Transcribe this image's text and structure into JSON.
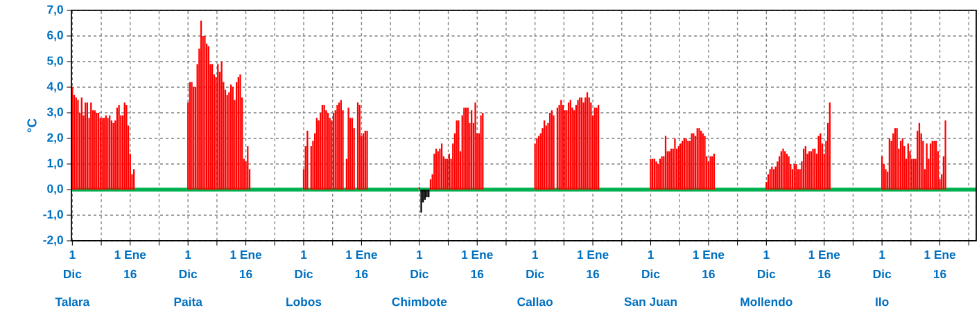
{
  "chart_data": [
    {
      "type": "bar",
      "xlabel": "Talara",
      "ylabel": "°C",
      "grid": true,
      "color": "#ff0000",
      "ylim": [
        -2,
        7
      ],
      "yticks": [
        {
          "value": -2,
          "label": "-2,0"
        },
        {
          "value": -1,
          "label": "-1,0"
        },
        {
          "value": 0,
          "label": "0,0"
        },
        {
          "value": 1,
          "label": "1,0"
        },
        {
          "value": 2,
          "label": "2,0"
        },
        {
          "value": 3,
          "label": "3,0"
        },
        {
          "value": 4,
          "label": "4,0"
        },
        {
          "value": 5,
          "label": "5,0"
        },
        {
          "value": 6,
          "label": "6,0"
        },
        {
          "value": 7,
          "label": "7,0"
        }
      ],
      "ref_lines": [
        {
          "axis": "y",
          "value": 0,
          "color": "#00b050"
        }
      ],
      "categories": [
        "1 Dic",
        null,
        null,
        null,
        null,
        null,
        null,
        null,
        null,
        null,
        null,
        null,
        null,
        null,
        null,
        null,
        null,
        null,
        null,
        null,
        null,
        null,
        null,
        null,
        null,
        null,
        null,
        null,
        null,
        null,
        null,
        "1 Ene 16",
        null,
        null,
        null,
        null,
        null,
        null,
        null,
        null,
        null,
        null,
        null,
        null,
        null,
        null,
        null,
        null,
        null,
        null,
        null,
        null,
        null,
        null,
        null,
        null,
        null,
        null,
        null,
        null,
        null,
        null
      ],
      "values": [
        4.0,
        3.7,
        3.6,
        3.5,
        3.0,
        3.6,
        2.9,
        3.4,
        3.4,
        2.8,
        3.4,
        3.1,
        3.1,
        3.0,
        3.0,
        2.8,
        2.8,
        2.8,
        2.9,
        2.8,
        2.9,
        2.7,
        2.6,
        2.7,
        3.2,
        3.3,
        2.9,
        2.9,
        3.4,
        3.3,
        2.5,
        1.4,
        0.6,
        0.8,
        null,
        null,
        null,
        null,
        null,
        null,
        null,
        null,
        null,
        null,
        null,
        null,
        null,
        null,
        null,
        null,
        null,
        null,
        null,
        null,
        null,
        null,
        null,
        null,
        null,
        null,
        null,
        null
      ]
    },
    {
      "type": "bar",
      "xlabel": "Paita",
      "grid": true,
      "color": "#ff0000",
      "ylim": [
        -2,
        7
      ],
      "tick_labels": "x",
      "yticks": [
        -2,
        -1,
        0,
        1,
        2,
        3,
        4,
        5,
        6,
        7
      ],
      "ref_lines": [
        {
          "axis": "y",
          "value": 0,
          "color": "#00b050"
        }
      ],
      "categories": [
        "1 Dic",
        null,
        null,
        null,
        null,
        null,
        null,
        null,
        null,
        null,
        null,
        null,
        null,
        null,
        null,
        null,
        null,
        null,
        null,
        null,
        null,
        null,
        null,
        null,
        null,
        null,
        null,
        null,
        null,
        null,
        null,
        "1 Ene 16",
        null,
        null,
        null,
        null,
        null,
        null,
        null,
        null,
        null,
        null,
        null,
        null,
        null,
        null,
        null,
        null,
        null,
        null,
        null,
        null,
        null,
        null,
        null,
        null,
        null,
        null,
        null,
        null,
        null,
        null
      ],
      "values": [
        3.4,
        4.2,
        4.2,
        4.0,
        4.0,
        4.9,
        5.5,
        6.6,
        6.0,
        6.0,
        5.7,
        5.6,
        4.9,
        4.9,
        4.5,
        4.4,
        4.9,
        4.6,
        5.0,
        4.2,
        3.9,
        3.7,
        3.8,
        4.1,
        4.0,
        3.5,
        4.2,
        4.4,
        4.5,
        3.6,
        1.2,
        1.1,
        1.7,
        0.8,
        null,
        null,
        null,
        null,
        null,
        null,
        null,
        null,
        null,
        null,
        null,
        null,
        null,
        null,
        null,
        null,
        null,
        null,
        null,
        null,
        null,
        null,
        null,
        null,
        null,
        null,
        null,
        null
      ]
    },
    {
      "type": "bar",
      "xlabel": "Lobos",
      "grid": true,
      "color": "#ff0000",
      "ylim": [
        -2,
        7
      ],
      "tick_labels": "x",
      "yticks": [
        -2,
        -1,
        0,
        1,
        2,
        3,
        4,
        5,
        6,
        7
      ],
      "ref_lines": [
        {
          "axis": "y",
          "value": 0,
          "color": "#00b050"
        }
      ],
      "categories": [
        "1 Dic",
        null,
        null,
        null,
        null,
        null,
        null,
        null,
        null,
        null,
        null,
        null,
        null,
        null,
        null,
        null,
        null,
        null,
        null,
        null,
        null,
        null,
        null,
        null,
        null,
        null,
        null,
        null,
        null,
        null,
        null,
        "1 Ene 16",
        null,
        null,
        null,
        null,
        null,
        null,
        null,
        null,
        null,
        null,
        null,
        null,
        null,
        null,
        null,
        null,
        null,
        null,
        null,
        null,
        null,
        null,
        null,
        null,
        null,
        null,
        null,
        null,
        null,
        null
      ],
      "values": [
        0.8,
        1.7,
        2.3,
        null,
        1.7,
        1.9,
        2.2,
        2.8,
        2.7,
        3.0,
        3.3,
        3.3,
        3.1,
        3.0,
        2.8,
        2.7,
        3.0,
        3.1,
        3.3,
        3.4,
        3.5,
        3.1,
        null,
        1.2,
        3.2,
        2.8,
        2.8,
        2.4,
        null,
        3.4,
        3.3,
        2.1,
        2.2,
        2.3,
        2.3,
        null,
        null,
        null,
        null,
        null,
        null,
        null,
        null,
        null,
        null,
        null,
        null,
        null,
        null,
        null,
        null,
        null,
        null,
        null,
        null,
        null,
        null,
        null,
        null,
        null,
        null,
        null
      ]
    },
    {
      "type": "bar",
      "xlabel": "Chimbote",
      "grid": true,
      "ylim": [
        -2,
        7
      ],
      "tick_labels": "x",
      "yticks": [
        -2,
        -1,
        0,
        1,
        2,
        3,
        4,
        5,
        6,
        7
      ],
      "ref_lines": [
        {
          "axis": "y",
          "value": 0,
          "color": "#00b050"
        }
      ],
      "categories": [
        "1 Dic",
        null,
        null,
        null,
        null,
        null,
        null,
        null,
        null,
        null,
        null,
        null,
        null,
        null,
        null,
        null,
        null,
        null,
        null,
        null,
        null,
        null,
        null,
        null,
        null,
        null,
        null,
        null,
        null,
        null,
        null,
        "1 Ene 16",
        null,
        null,
        null,
        null,
        null,
        null,
        null,
        null,
        null,
        null,
        null,
        null,
        null,
        null,
        null,
        null,
        null,
        null,
        null,
        null,
        null,
        null,
        null,
        null,
        null,
        null,
        null,
        null,
        null,
        null
      ],
      "values": [
        0.1,
        -0.9,
        -0.5,
        -0.4,
        -0.3,
        -0.3,
        0.4,
        0.6,
        1.4,
        1.6,
        1.5,
        1.6,
        1.8,
        1.3,
        1.2,
        1.2,
        1.4,
        1.2,
        1.8,
        2.2,
        2.7,
        2.7,
        1.5,
        2.9,
        3.2,
        3.2,
        3.2,
        2.6,
        3.1,
        2.6,
        3.4,
        2.2,
        2.2,
        2.9,
        3.0,
        null,
        null,
        null,
        null,
        null,
        null,
        null,
        null,
        null,
        null,
        null,
        null,
        null,
        null,
        null,
        null,
        null,
        null,
        null,
        null,
        null,
        null,
        null,
        null,
        null,
        null,
        null
      ],
      "colors": [
        "#ff0000",
        "#000000",
        "#000000",
        "#000000",
        "#000000",
        "#000000",
        "#ff0000",
        "#ff0000",
        "#ff0000",
        "#ff0000",
        "#ff0000",
        "#ff0000",
        "#ff0000",
        "#ff0000",
        "#ff0000",
        "#ff0000",
        "#ff0000",
        "#ff0000",
        "#ff0000",
        "#ff0000",
        "#ff0000",
        "#ff0000",
        "#ff0000",
        "#ff0000",
        "#ff0000",
        "#ff0000",
        "#ff0000",
        "#ff0000",
        "#ff0000",
        "#ff0000",
        "#ff0000",
        "#ff0000",
        "#ff0000",
        "#ff0000",
        "#ff0000",
        "#ff0000",
        "#ff0000",
        "#ff0000",
        "#ff0000",
        "#ff0000",
        "#ff0000",
        "#ff0000",
        "#ff0000",
        "#ff0000",
        "#ff0000",
        "#ff0000",
        "#ff0000",
        "#ff0000",
        "#ff0000",
        "#ff0000",
        "#ff0000",
        "#ff0000",
        "#ff0000",
        "#ff0000",
        "#ff0000",
        "#ff0000",
        "#ff0000",
        "#ff0000",
        "#ff0000",
        "#ff0000",
        "#ff0000",
        "#ff0000"
      ]
    },
    {
      "type": "bar",
      "xlabel": "Callao",
      "grid": true,
      "color": "#ff0000",
      "ylim": [
        -2,
        7
      ],
      "tick_labels": "x",
      "yticks": [
        -2,
        -1,
        0,
        1,
        2,
        3,
        4,
        5,
        6,
        7
      ],
      "ref_lines": [
        {
          "axis": "y",
          "value": 0,
          "color": "#00b050"
        }
      ],
      "categories": [
        "1 Dic",
        null,
        null,
        null,
        null,
        null,
        null,
        null,
        null,
        null,
        null,
        null,
        null,
        null,
        null,
        null,
        null,
        null,
        null,
        null,
        null,
        null,
        null,
        null,
        null,
        null,
        null,
        null,
        null,
        null,
        null,
        "1 Ene 16",
        null,
        null,
        null,
        null,
        null,
        null,
        null,
        null,
        null,
        null,
        null,
        null,
        null,
        null,
        null,
        null,
        null,
        null,
        null,
        null,
        null,
        null,
        null,
        null,
        null,
        null,
        null,
        null,
        null,
        null
      ],
      "values": [
        1.8,
        2.0,
        2.1,
        2.2,
        2.4,
        2.7,
        2.5,
        2.6,
        3.0,
        3.1,
        2.9,
        null,
        3.2,
        3.3,
        3.5,
        3.3,
        3.1,
        3.1,
        3.4,
        3.5,
        3.2,
        3.1,
        3.3,
        3.5,
        3.6,
        3.6,
        3.4,
        3.6,
        3.8,
        3.6,
        3.4,
        2.9,
        3.2,
        3.2,
        3.3,
        null,
        null,
        null,
        null,
        null,
        null,
        null,
        null,
        null,
        null,
        null,
        null,
        null,
        null,
        null,
        null,
        null,
        null,
        null,
        null,
        null,
        null,
        null,
        null,
        null,
        null,
        null
      ]
    },
    {
      "type": "bar",
      "xlabel": "San Juan",
      "grid": true,
      "color": "#ff0000",
      "ylim": [
        -2,
        7
      ],
      "tick_labels": "x",
      "yticks": [
        -2,
        -1,
        0,
        1,
        2,
        3,
        4,
        5,
        6,
        7
      ],
      "ref_lines": [
        {
          "axis": "y",
          "value": 0,
          "color": "#00b050"
        }
      ],
      "categories": [
        "1 Dic",
        null,
        null,
        null,
        null,
        null,
        null,
        null,
        null,
        null,
        null,
        null,
        null,
        null,
        null,
        null,
        null,
        null,
        null,
        null,
        null,
        null,
        null,
        null,
        null,
        null,
        null,
        null,
        null,
        null,
        null,
        "1 Ene 16",
        null,
        null,
        null,
        null,
        null,
        null,
        null,
        null,
        null,
        null,
        null,
        null,
        null,
        null,
        null,
        null,
        null,
        null,
        null,
        null,
        null,
        null,
        null,
        null,
        null,
        null,
        null,
        null,
        null,
        null
      ],
      "values": [
        1.2,
        1.2,
        1.2,
        1.1,
        1.0,
        1.2,
        1.3,
        1.3,
        2.1,
        1.5,
        1.5,
        1.6,
        1.6,
        2.0,
        1.6,
        1.7,
        1.8,
        1.9,
        2.0,
        2.0,
        1.9,
        1.9,
        2.2,
        2.2,
        2.1,
        2.4,
        2.4,
        2.3,
        2.2,
        2.1,
        1.3,
        1.1,
        1.3,
        1.3,
        1.4,
        null,
        null,
        null,
        null,
        null,
        null,
        null,
        null,
        null,
        null,
        null,
        null,
        null,
        null,
        null,
        null,
        null,
        null,
        null,
        null,
        null,
        null,
        null,
        null,
        null,
        null,
        null
      ]
    },
    {
      "type": "bar",
      "xlabel": "Mollendo",
      "grid": true,
      "color": "#ff0000",
      "ylim": [
        -2,
        7
      ],
      "tick_labels": "x",
      "yticks": [
        -2,
        -1,
        0,
        1,
        2,
        3,
        4,
        5,
        6,
        7
      ],
      "ref_lines": [
        {
          "axis": "y",
          "value": 0,
          "color": "#00b050"
        }
      ],
      "categories": [
        "1 Dic",
        null,
        null,
        null,
        null,
        null,
        null,
        null,
        null,
        null,
        null,
        null,
        null,
        null,
        null,
        null,
        null,
        null,
        null,
        null,
        null,
        null,
        null,
        null,
        null,
        null,
        null,
        null,
        null,
        null,
        null,
        "1 Ene 16",
        null,
        null,
        null,
        null,
        null,
        null,
        null,
        null,
        null,
        null,
        null,
        null,
        null,
        null,
        null,
        null,
        null,
        null,
        null,
        null,
        null,
        null,
        null,
        null,
        null,
        null,
        null,
        null,
        null,
        null
      ],
      "values": [
        0.3,
        0.6,
        0.8,
        0.9,
        0.8,
        0.9,
        1.1,
        1.3,
        1.5,
        1.6,
        1.5,
        1.4,
        1.3,
        1.0,
        0.8,
        1.0,
        1.0,
        0.8,
        0.8,
        1.1,
        1.6,
        1.7,
        1.4,
        1.5,
        1.5,
        1.6,
        1.6,
        1.4,
        2.1,
        2.2,
        1.8,
        1.4,
        1.9,
        2.6,
        3.4,
        null,
        null,
        null,
        null,
        null,
        null,
        null,
        null,
        null,
        null,
        null,
        null,
        null,
        null,
        null,
        null,
        null,
        null,
        null,
        null,
        null,
        null,
        null,
        null,
        null,
        null,
        null
      ]
    },
    {
      "type": "bar",
      "xlabel": "Ilo",
      "grid": true,
      "color": "#ff0000",
      "ylim": [
        -2,
        7
      ],
      "tick_labels": "x",
      "yticks": [
        -2,
        -1,
        0,
        1,
        2,
        3,
        4,
        5,
        6,
        7
      ],
      "ref_lines": [
        {
          "axis": "y",
          "value": 0,
          "color": "#00b050"
        }
      ],
      "categories": [
        "1 Dic",
        null,
        null,
        null,
        null,
        null,
        null,
        null,
        null,
        null,
        null,
        null,
        null,
        null,
        null,
        null,
        null,
        null,
        null,
        null,
        null,
        null,
        null,
        null,
        null,
        null,
        null,
        null,
        null,
        null,
        null,
        "1 Ene 16",
        null,
        null,
        null,
        null,
        null,
        null,
        null,
        null,
        null,
        null,
        null,
        null,
        null,
        null,
        null,
        null,
        null,
        null,
        null
      ],
      "values": [
        1.3,
        1.0,
        0.8,
        0.7,
        2.0,
        1.9,
        2.2,
        2.4,
        2.4,
        1.6,
        1.9,
        2.0,
        1.7,
        1.2,
        1.8,
        1.5,
        1.2,
        1.2,
        1.2,
        2.3,
        2.6,
        2.2,
        1.9,
        0.8,
        1.8,
        1.2,
        1.8,
        1.9,
        1.9,
        1.9,
        1.5,
        0.4,
        0.6,
        1.3,
        2.7,
        null,
        null,
        null,
        null,
        null,
        null,
        null,
        null,
        null,
        null,
        null,
        null,
        null,
        null,
        null,
        null
      ]
    }
  ]
}
